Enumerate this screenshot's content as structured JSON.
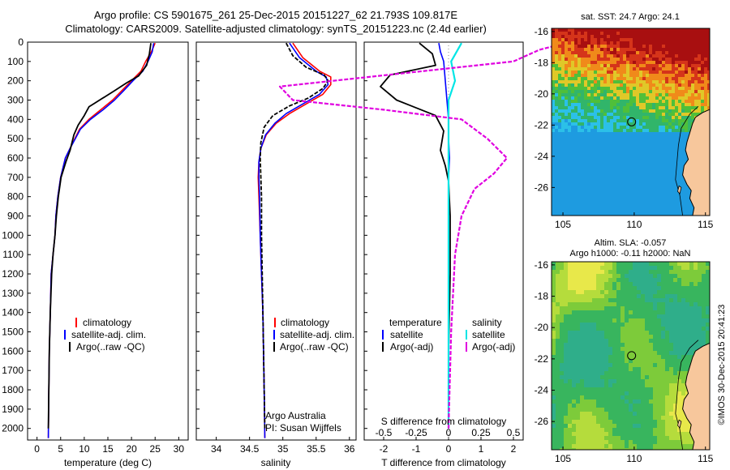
{
  "header": {
    "title_line1": "Argo profile: CS 5901675_261 25-Dec-2015 20151227_62 21.793S 109.817E",
    "title_line2": "Climatology: CARS2009. Satellite-adjusted climatology: synTS_20151223.nc (2.4d earlier)"
  },
  "colors": {
    "climatology": "#ff0000",
    "satellite": "#0000ff",
    "argo": "#000000",
    "sal_satellite": "#00e5e5",
    "sal_argo": "#e000e0",
    "land": "#f7c79c"
  },
  "depth_axis": {
    "range": [
      0,
      2060
    ],
    "ticks": [
      0,
      100,
      200,
      300,
      400,
      500,
      600,
      700,
      800,
      900,
      1000,
      1100,
      1200,
      1300,
      1400,
      1500,
      1600,
      1700,
      1800,
      1900,
      2000
    ]
  },
  "chart_data": [
    {
      "id": "temperature",
      "type": "line",
      "xlabel": "temperature (deg C)",
      "xlim": [
        -2,
        32
      ],
      "xticks": [
        "0",
        "5",
        "10",
        "15",
        "20",
        "25",
        "30"
      ],
      "xtick_values": [
        0,
        5,
        10,
        15,
        20,
        25,
        30
      ],
      "legend": [
        "climatology",
        "satellite-adj. clim.",
        "Argo(..raw -QC)"
      ],
      "series": [
        {
          "name": "climatology",
          "role": "climatology",
          "x": [
            25,
            24.2,
            23,
            22,
            20,
            18,
            16,
            13.5,
            11,
            9,
            8,
            7,
            6,
            5,
            4.4,
            4,
            3.8,
            3.4,
            3,
            2.8,
            2.6,
            2.5,
            2.4
          ],
          "y": [
            5,
            50,
            100,
            150,
            200,
            250,
            300,
            350,
            400,
            450,
            500,
            550,
            600,
            700,
            800,
            900,
            1000,
            1100,
            1200,
            1400,
            1600,
            1800,
            2050
          ]
        },
        {
          "name": "satellite-adj. clim.",
          "role": "satellite",
          "x": [
            24.7,
            24.4,
            23.5,
            22.4,
            20.3,
            18.4,
            16.4,
            14,
            11.3,
            9.2,
            8.1,
            7,
            6,
            5,
            4.4,
            4,
            3.8,
            3.4,
            3,
            2.8,
            2.6,
            2.5,
            2.4
          ],
          "y": [
            5,
            50,
            100,
            150,
            200,
            250,
            300,
            350,
            400,
            450,
            500,
            550,
            600,
            700,
            800,
            900,
            1000,
            1100,
            1200,
            1400,
            1600,
            1800,
            2050
          ]
        },
        {
          "name": "Argo(..raw -QC)",
          "role": "argo",
          "x": [
            24.1,
            23.8,
            23.2,
            21.5,
            19,
            16.5,
            11,
            10,
            8.7,
            7.8,
            7,
            6.1,
            5.1,
            4.5,
            4.1,
            3.8,
            3.4,
            3.1,
            2.8,
            2.6,
            2.5,
            2.4
          ],
          "y": [
            5,
            60,
            120,
            175,
            210,
            250,
            335,
            380,
            430,
            480,
            560,
            620,
            700,
            800,
            900,
            1000,
            1100,
            1200,
            1400,
            1600,
            1800,
            2000
          ]
        }
      ]
    },
    {
      "id": "salinity",
      "type": "line",
      "xlabel": "salinity",
      "xlim": [
        33.7,
        36.1
      ],
      "xticks": [
        "34",
        "34.5",
        "35",
        "35.5",
        "36"
      ],
      "xtick_values": [
        34,
        34.5,
        35,
        35.5,
        36
      ],
      "legend": [
        "climatology",
        "satellite-adj. clim.",
        "Argo(..raw -QC)"
      ],
      "credit": [
        "Argo Australia",
        "PI: Susan Wijffels"
      ],
      "series": [
        {
          "name": "climatology",
          "role": "climatology",
          "x": [
            35.15,
            35.3,
            35.55,
            35.72,
            35.72,
            35.6,
            35.35,
            35.1,
            34.9,
            34.75,
            34.67,
            34.64,
            34.63,
            34.64,
            34.66,
            34.68,
            34.7,
            34.71,
            34.72,
            34.73
          ],
          "y": [
            5,
            80,
            150,
            180,
            220,
            270,
            320,
            370,
            420,
            480,
            550,
            620,
            700,
            800,
            1000,
            1200,
            1400,
            1600,
            1800,
            2050
          ]
        },
        {
          "name": "satellite-adj. clim.",
          "role": "satellite",
          "x": [
            35.1,
            35.25,
            35.5,
            35.65,
            35.68,
            35.55,
            35.3,
            35.05,
            34.88,
            34.74,
            34.67,
            34.64,
            34.64,
            34.65,
            34.66,
            34.68,
            34.7,
            34.71,
            34.72,
            34.73
          ],
          "y": [
            5,
            80,
            150,
            180,
            220,
            270,
            320,
            370,
            420,
            480,
            550,
            620,
            700,
            800,
            1000,
            1200,
            1400,
            1600,
            1800,
            2050
          ]
        },
        {
          "name": "Argo(..raw -QC)",
          "role": "argo",
          "x": [
            35.05,
            35.15,
            35.35,
            35.62,
            35.68,
            35.6,
            35.38,
            35.1,
            34.85,
            34.72,
            34.67,
            34.66,
            34.67,
            34.68,
            34.68,
            34.69,
            34.7,
            34.71,
            34.72,
            34.73
          ],
          "y": [
            5,
            70,
            130,
            170,
            200,
            240,
            290,
            330,
            380,
            440,
            520,
            600,
            700,
            800,
            1000,
            1200,
            1400,
            1600,
            1800,
            2000
          ]
        }
      ]
    },
    {
      "id": "difference",
      "type": "line",
      "xlabel": "T difference from climatology",
      "x2label": "S difference from climatology",
      "xlim": [
        -2.6,
        2.3
      ],
      "xticks": [
        "-2",
        "-1",
        "0",
        "1",
        "2"
      ],
      "xtick_values": [
        -2,
        -1,
        0,
        1,
        2
      ],
      "x2ticks": [
        "-0.5",
        "-0.25",
        "0",
        "0.25",
        "0.5"
      ],
      "x2tick_values": [
        -0.5,
        -0.25,
        0,
        0.25,
        0.5
      ],
      "legend_titles": [
        "temperature",
        "salinity"
      ],
      "legend_left": [
        "satellite",
        "Argo(-adj)"
      ],
      "legend_right": [
        "satellite",
        "Argo(-adj)"
      ],
      "series": [
        {
          "name": "temperature satellite",
          "role": "satellite",
          "x": [
            -0.3,
            -0.25,
            -0.15,
            -0.1,
            -0.05,
            0,
            0,
            0.03,
            0,
            0,
            0,
            0
          ],
          "y": [
            5,
            50,
            100,
            200,
            300,
            400,
            500,
            600,
            700,
            900,
            1500,
            2000
          ]
        },
        {
          "name": "temperature Argo(-adj)",
          "role": "argo",
          "x": [
            -0.9,
            -0.5,
            -0.4,
            -1.8,
            -2.1,
            -1.6,
            -0.4,
            -0.15,
            -0.25,
            -0.1,
            0,
            0.05,
            0.05,
            0,
            0
          ],
          "y": [
            5,
            60,
            120,
            170,
            230,
            300,
            380,
            460,
            560,
            640,
            720,
            900,
            1200,
            1600,
            2000
          ]
        },
        {
          "name": "salinity satellite",
          "role": "sal_satellite",
          "x": [
            0.1,
            0.02,
            0.05,
            0,
            0,
            0,
            0,
            0,
            0,
            0
          ],
          "y": [
            5,
            100,
            200,
            300,
            400,
            600,
            900,
            1200,
            1600,
            2000
          ]
        },
        {
          "name": "salinity Argo(-adj)",
          "role": "sal_argo",
          "x": [
            0.9,
            0.7,
            0.5,
            -0.2,
            -1.3,
            -1.2,
            -0.5,
            0.1,
            0.3,
            0.45,
            0.35,
            0.2,
            0.1,
            0.05,
            0.02,
            0
          ],
          "y": [
            5,
            40,
            100,
            150,
            230,
            300,
            350,
            400,
            500,
            600,
            680,
            760,
            900,
            1100,
            1500,
            2000
          ]
        }
      ]
    },
    {
      "id": "sst_map",
      "type": "heatmap",
      "title": "sat. SST: 24.7  Argo: 24.1",
      "xlim": [
        104.2,
        115.3
      ],
      "ylim": [
        -27.8,
        -15.8
      ],
      "xticks": [
        "105",
        "110",
        "115"
      ],
      "xtick_values": [
        105,
        110,
        115
      ],
      "yticks": [
        "-16",
        "-18",
        "-20",
        "-22",
        "-24",
        "-26"
      ],
      "ytick_values": [
        -16,
        -18,
        -20,
        -22,
        -24,
        -26
      ],
      "marker": {
        "lon": 109.817,
        "lat": -21.793
      }
    },
    {
      "id": "sla_map",
      "type": "heatmap",
      "title": "Altim. SLA: -0.057",
      "subtitle": "Argo h1000: -0.11  h2000: NaN",
      "xlim": [
        104.2,
        115.3
      ],
      "ylim": [
        -27.8,
        -15.8
      ],
      "xticks": [
        "105",
        "110",
        "115"
      ],
      "xtick_values": [
        105,
        110,
        115
      ],
      "yticks": [
        "-16",
        "-18",
        "-20",
        "-22",
        "-24",
        "-26"
      ],
      "ytick_values": [
        -16,
        -18,
        -20,
        -22,
        -24,
        -26
      ],
      "marker": {
        "lon": 109.817,
        "lat": -21.793
      }
    }
  ],
  "footer": {
    "stamp": "©IMOS 30-Dec-2015 20:41:23"
  }
}
